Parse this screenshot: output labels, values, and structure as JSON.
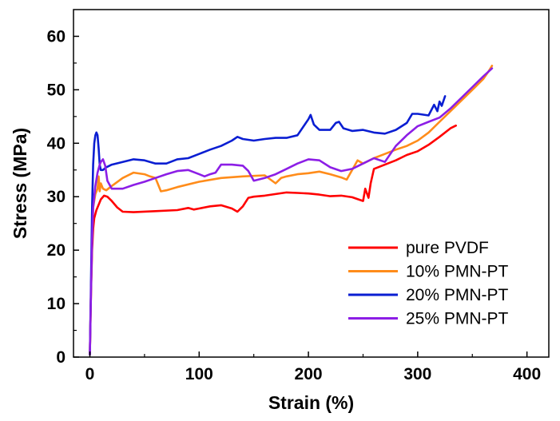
{
  "chart_data": {
    "type": "line",
    "title": "",
    "xlabel": "Strain (%)",
    "ylabel": "Stress (MPa)",
    "xlim": [
      -15,
      420
    ],
    "ylim": [
      0,
      65
    ],
    "xticks": [
      0,
      100,
      200,
      300,
      400
    ],
    "yticks": [
      0,
      10,
      20,
      30,
      40,
      50,
      60
    ],
    "grid": false,
    "legend_position": "bottom-right",
    "series": [
      {
        "name": "pure PVDF",
        "color": "#ff0000",
        "x": [
          0,
          1,
          2,
          3,
          4,
          6,
          8,
          10,
          13,
          16,
          20,
          25,
          30,
          40,
          60,
          80,
          90,
          95,
          100,
          110,
          120,
          130,
          135,
          140,
          145,
          150,
          160,
          170,
          180,
          190,
          200,
          210,
          220,
          230,
          240,
          250,
          252,
          255,
          257,
          260,
          270,
          280,
          290,
          300,
          310,
          320,
          330,
          335
        ],
        "y": [
          0.5,
          12,
          20,
          24,
          26,
          27.5,
          28.5,
          29.5,
          30.2,
          30,
          29.2,
          28,
          27.2,
          27.1,
          27.3,
          27.5,
          27.9,
          27.6,
          27.8,
          28.2,
          28.4,
          27.8,
          27.2,
          28.2,
          29.8,
          30,
          30.2,
          30.5,
          30.8,
          30.7,
          30.6,
          30.4,
          30.1,
          30.2,
          29.9,
          29.2,
          31.5,
          29.8,
          32.5,
          35.2,
          36,
          36.8,
          37.8,
          38.5,
          39.7,
          41.2,
          42.8,
          43.3
        ]
      },
      {
        "name": "10% PMN-PT",
        "color": "#ff8c1a",
        "x": [
          0,
          1,
          2,
          3,
          5,
          7,
          8,
          9,
          10,
          12,
          15,
          20,
          30,
          40,
          50,
          55,
          60,
          65,
          70,
          80,
          100,
          120,
          140,
          160,
          170,
          175,
          180,
          190,
          200,
          210,
          220,
          230,
          235,
          240,
          245,
          250,
          260,
          270,
          280,
          290,
          300,
          310,
          320,
          330,
          340,
          350,
          360,
          365,
          368
        ],
        "y": [
          0.5,
          12,
          22,
          28,
          30.5,
          31.5,
          33.8,
          31,
          32.5,
          31.5,
          31.2,
          32,
          33.5,
          34.5,
          34.2,
          33.8,
          33.5,
          31,
          31.2,
          31.8,
          32.8,
          33.5,
          33.8,
          34,
          32.5,
          33.5,
          33.8,
          34.2,
          34.4,
          34.7,
          34.2,
          33.6,
          33.2,
          35,
          36.8,
          36.2,
          37.2,
          38,
          38.8,
          39.5,
          40.5,
          42,
          44,
          46,
          48,
          50,
          52,
          53.5,
          54.5
        ]
      },
      {
        "name": "20% PMN-PT",
        "color": "#0a1ed2",
        "x": [
          0,
          1,
          2,
          3,
          4,
          5,
          6,
          7,
          8,
          9,
          10,
          12,
          15,
          20,
          30,
          40,
          50,
          60,
          70,
          80,
          90,
          100,
          110,
          120,
          130,
          135,
          140,
          150,
          160,
          170,
          180,
          190,
          200,
          202,
          205,
          210,
          220,
          225,
          228,
          232,
          240,
          250,
          260,
          270,
          280,
          290,
          295,
          300,
          310,
          315,
          318,
          320,
          322,
          325
        ],
        "y": [
          0.5,
          14,
          28,
          36,
          40,
          41.5,
          42,
          41.5,
          39,
          36,
          35,
          35,
          35.5,
          36,
          36.5,
          37,
          36.8,
          36.2,
          36.2,
          37,
          37.2,
          38,
          38.8,
          39.5,
          40.5,
          41.2,
          40.8,
          40.5,
          40.8,
          41,
          41,
          41.5,
          44.5,
          45.3,
          43.5,
          42.5,
          42.5,
          43.8,
          44,
          42.8,
          42.3,
          42.5,
          42,
          41.8,
          42.5,
          43.8,
          45.5,
          45.5,
          45.2,
          47.2,
          46,
          47.8,
          47,
          48.8
        ]
      },
      {
        "name": "25% PMN-PT",
        "color": "#8c1ee6",
        "x": [
          0,
          1,
          2,
          3,
          5,
          7,
          9,
          10,
          12,
          14,
          16,
          20,
          30,
          40,
          50,
          60,
          70,
          80,
          90,
          100,
          105,
          110,
          115,
          120,
          130,
          140,
          145,
          150,
          160,
          170,
          180,
          190,
          200,
          210,
          220,
          230,
          240,
          250,
          260,
          270,
          280,
          290,
          300,
          310,
          320,
          330,
          340,
          350,
          360,
          368
        ],
        "y": [
          0.5,
          12,
          22,
          28,
          32,
          34.5,
          36,
          36.5,
          37,
          35.8,
          33,
          31.5,
          31.5,
          32.2,
          32.8,
          33.5,
          34.2,
          34.8,
          35,
          34.2,
          33.8,
          34.2,
          34.5,
          36,
          36,
          35.8,
          34.8,
          33,
          33.5,
          34.2,
          35.2,
          36.2,
          37,
          36.8,
          35.5,
          34.8,
          35.2,
          36.2,
          37.2,
          36.5,
          39.5,
          41.5,
          43.2,
          44,
          44.8,
          46.5,
          48.5,
          50.5,
          52.5,
          54
        ]
      }
    ]
  }
}
